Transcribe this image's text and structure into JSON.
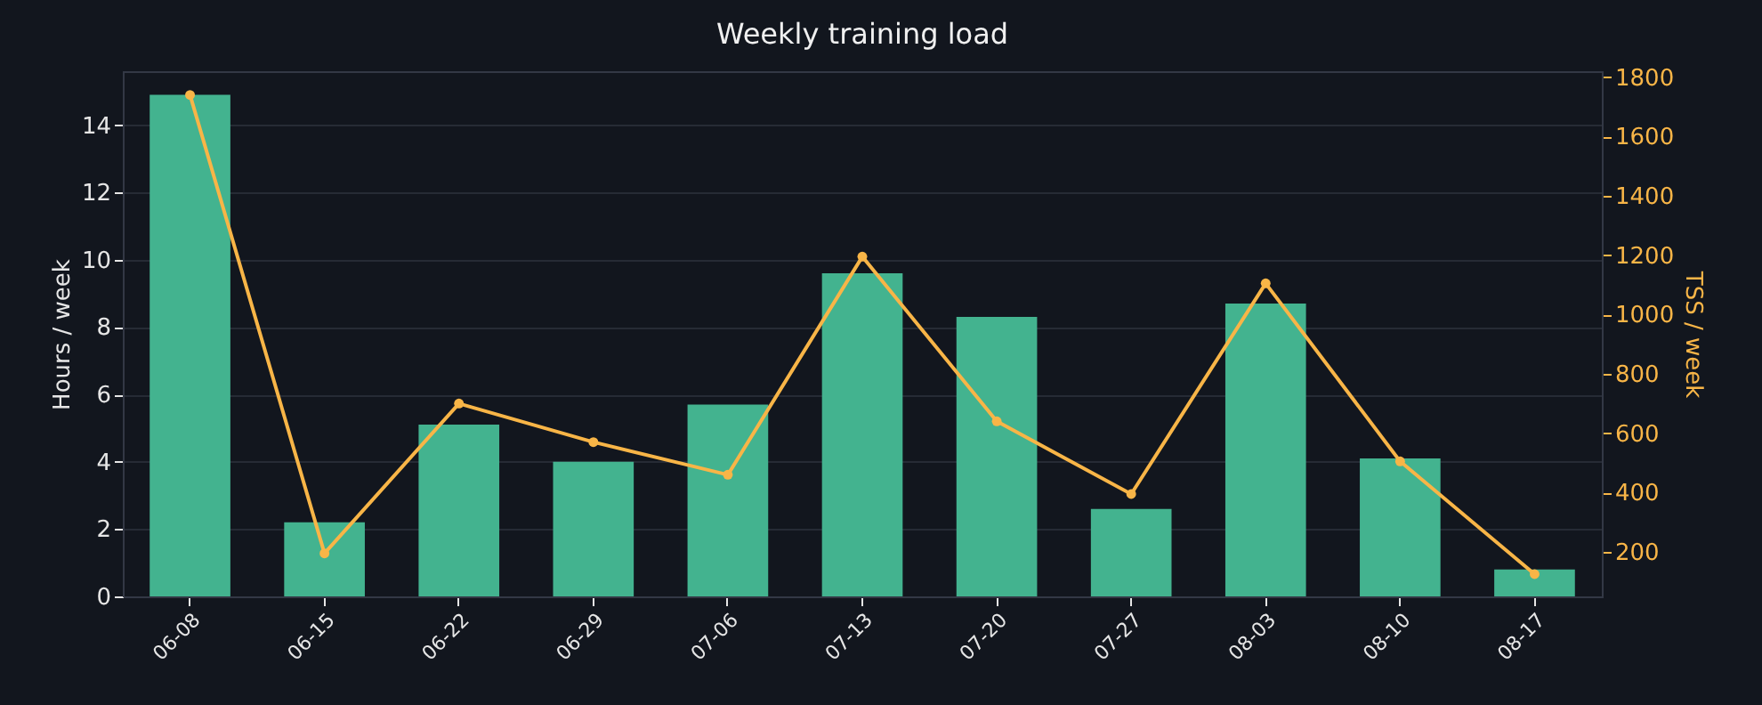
{
  "chart_data": {
    "type": "bar",
    "title": "Weekly training load",
    "ylabel": "Hours / week",
    "y2label": "TSS / week",
    "categories": [
      "06-08",
      "06-15",
      "06-22",
      "06-29",
      "07-06",
      "07-13",
      "07-20",
      "07-27",
      "08-03",
      "08-10",
      "08-17"
    ],
    "series": [
      {
        "color": "#43b38f",
        "values": [
          14.9,
          2.2,
          5.1,
          4.0,
          5.7,
          9.6,
          8.3,
          2.6,
          8.7,
          4.1,
          0.8
        ]
      },
      {
        "type": "line",
        "axis": "y2",
        "color": "#f8b547",
        "values": [
          1740,
          195,
          700,
          570,
          460,
          1195,
          640,
          395,
          1105,
          505,
          125
        ]
      }
    ],
    "ylim": [
      0,
      15.6
    ],
    "yticks": [
      0,
      2,
      4,
      6,
      8,
      10,
      12,
      14
    ],
    "y2lim": [
      50,
      1820
    ],
    "y2ticks": [
      200,
      400,
      600,
      800,
      1000,
      1200,
      1400,
      1600,
      1800
    ],
    "grid": "y",
    "marker": "circle",
    "line_style": "solid"
  }
}
